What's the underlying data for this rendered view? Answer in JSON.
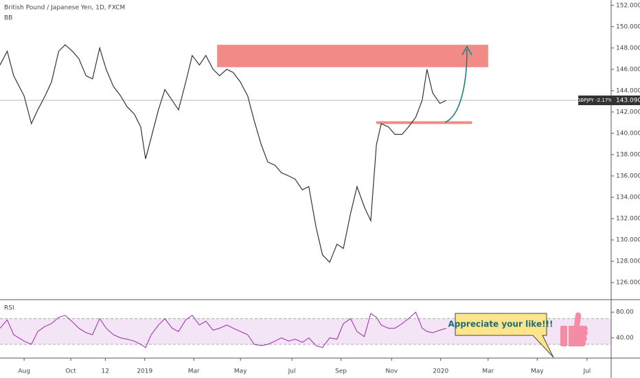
{
  "chart_data": {
    "type": "line",
    "title": "British Pound / Japanese Yen, 1D, FXCM",
    "indicator_label": "BB",
    "x": [
      -30,
      -21,
      -13,
      0,
      9,
      17,
      26,
      34,
      43,
      51,
      60,
      68,
      77,
      85,
      94,
      102,
      111,
      120,
      128,
      137,
      145,
      151,
      158,
      167,
      175,
      184,
      192,
      201,
      209,
      218,
      226,
      235,
      243,
      252,
      260,
      269,
      278,
      286,
      295,
      303,
      312,
      320,
      329,
      337,
      346,
      354,
      363,
      371,
      380,
      389,
      397,
      406,
      414,
      423,
      431,
      438,
      444,
      453,
      461,
      470,
      478,
      487,
      495,
      501,
      508,
      517,
      525
    ],
    "series": [
      {
        "name": "GBPJPY",
        "color": "#333333",
        "values": [
          146.4,
          147.7,
          145.4,
          143.5,
          140.9,
          142.2,
          143.5,
          144.8,
          147.7,
          148.3,
          147.7,
          147.0,
          145.4,
          145.1,
          148.0,
          146.0,
          144.4,
          143.5,
          142.5,
          141.8,
          140.6,
          137.6,
          139.6,
          142.2,
          144.1,
          143.1,
          142.2,
          144.8,
          147.3,
          146.4,
          147.3,
          146.0,
          145.4,
          146.0,
          145.7,
          144.8,
          143.5,
          141.2,
          138.9,
          137.3,
          137.0,
          136.3,
          136.0,
          135.7,
          134.7,
          135.0,
          131.2,
          128.6,
          127.9,
          129.6,
          129.2,
          132.5,
          135.0,
          133.1,
          131.8,
          138.9,
          140.9,
          140.6,
          139.9,
          139.9,
          140.6,
          141.5,
          143.1,
          146.0,
          143.8,
          142.8,
          143.09
        ]
      }
    ],
    "xlim": [
      -30,
      730
    ],
    "xticks": [
      {
        "value": 0,
        "label": "Aug"
      },
      {
        "value": 58,
        "label": "Oct"
      },
      {
        "value": 101,
        "label": "12"
      },
      {
        "value": 150,
        "label": "2019"
      },
      {
        "value": 211,
        "label": "Mar"
      },
      {
        "value": 269,
        "label": "May"
      },
      {
        "value": 333,
        "label": "Jul"
      },
      {
        "value": 394,
        "label": "Sep"
      },
      {
        "value": 457,
        "label": "Nov"
      },
      {
        "value": 518,
        "label": "2020"
      },
      {
        "value": 577,
        "label": "Mar"
      },
      {
        "value": 638,
        "label": "May"
      },
      {
        "value": 700,
        "label": "Jul"
      }
    ],
    "ylim": [
      124.4,
      152.5
    ],
    "yticks": [
      {
        "value": 126,
        "label": "126.000"
      },
      {
        "value": 128,
        "label": "128.000"
      },
      {
        "value": 130,
        "label": "130.000"
      },
      {
        "value": 132,
        "label": "132.000"
      },
      {
        "value": 134,
        "label": "134.000"
      },
      {
        "value": 136,
        "label": "136.000"
      },
      {
        "value": 138,
        "label": "138.000"
      },
      {
        "value": 140,
        "label": "140.000"
      },
      {
        "value": 142,
        "label": "142.000"
      },
      {
        "value": 144,
        "label": "144.000"
      },
      {
        "value": 146,
        "label": "146.000"
      },
      {
        "value": 148,
        "label": "148.000"
      },
      {
        "value": 150,
        "label": "150.000"
      },
      {
        "value": 152,
        "label": "152.000"
      }
    ],
    "grid": false,
    "last_price": {
      "value": 143.09,
      "label": "143.090"
    },
    "symbol_label": "GBPJPY -2.17%",
    "resistance_zone": {
      "y": [
        146.2,
        148.3
      ],
      "x": [
        240,
        577
      ],
      "color": "#f28b86"
    },
    "support_level": {
      "y": 141,
      "x": [
        438,
        557
      ],
      "color": "#f28b86"
    },
    "rsi": {
      "name": "RSI",
      "color": "#9c27b0",
      "values": [
        55,
        68,
        45,
        35,
        30,
        50,
        58,
        62,
        72,
        75,
        65,
        55,
        48,
        45,
        70,
        55,
        45,
        40,
        38,
        35,
        30,
        25,
        45,
        60,
        70,
        55,
        50,
        68,
        75,
        60,
        66,
        52,
        55,
        60,
        55,
        50,
        45,
        30,
        28,
        30,
        35,
        40,
        35,
        38,
        33,
        40,
        28,
        25,
        40,
        38,
        62,
        70,
        50,
        42,
        78,
        72,
        60,
        55,
        55,
        62,
        70,
        80,
        55,
        50,
        48,
        52,
        55
      ],
      "ylim": [
        8.6,
        98.4
      ],
      "yticks": [
        {
          "value": 80,
          "label": "80.00"
        },
        {
          "value": 40,
          "label": "40.00"
        }
      ],
      "bands": [
        30,
        70
      ]
    },
    "callout": "Appreciate your like!!!"
  }
}
